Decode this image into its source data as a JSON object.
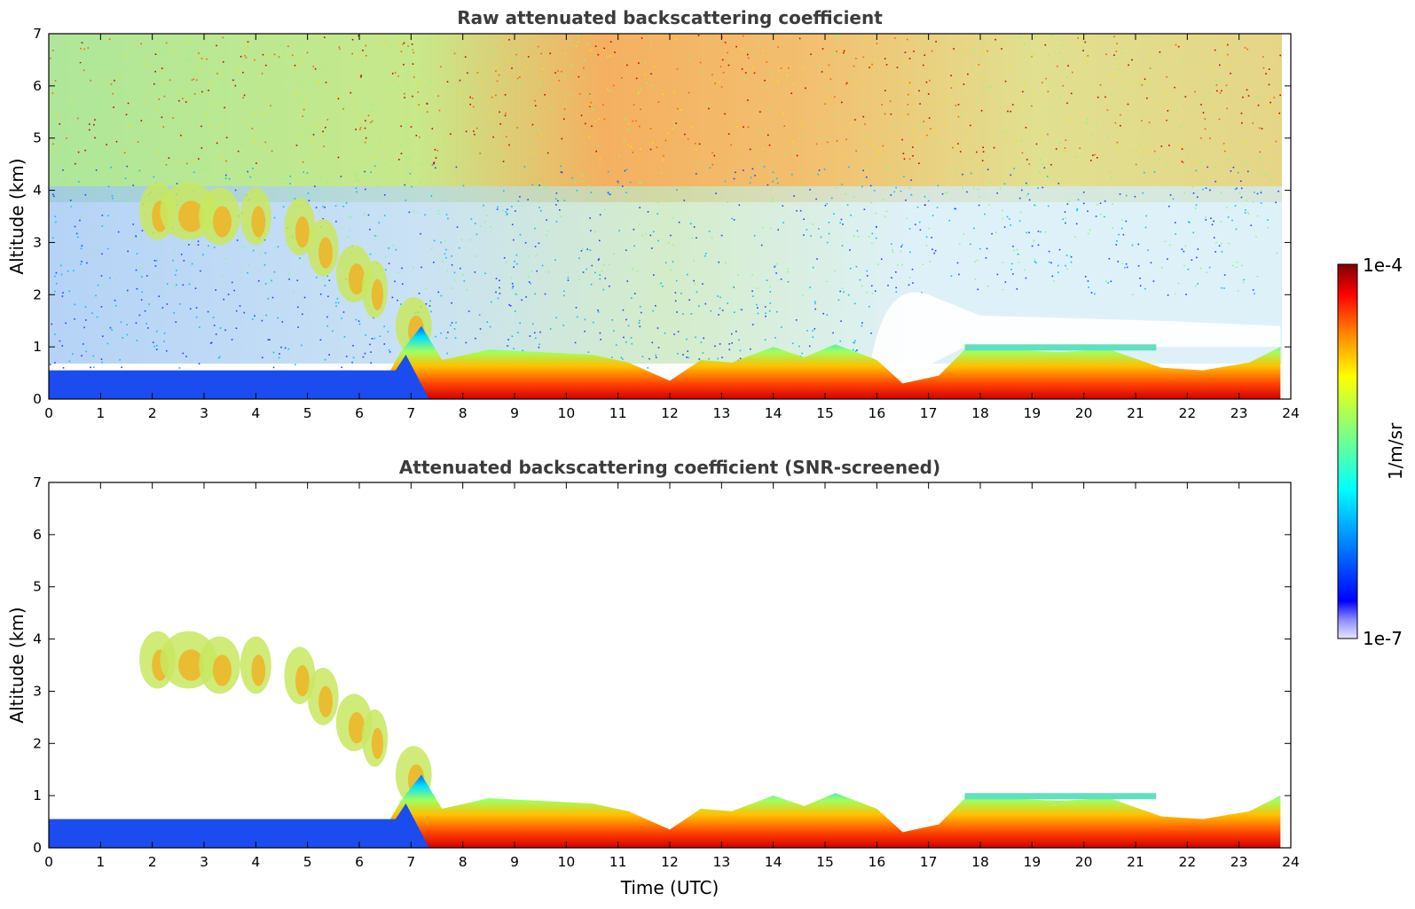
{
  "chart_data": [
    {
      "type": "heatmap",
      "title": "Raw attenuated backscattering coefficient",
      "xlabel": "",
      "ylabel": "Altitude (km)",
      "xlim": [
        0,
        24
      ],
      "ylim": [
        0,
        7
      ],
      "xticks": [
        "0",
        "1",
        "2",
        "3",
        "4",
        "5",
        "6",
        "7",
        "8",
        "9",
        "10",
        "11",
        "12",
        "13",
        "14",
        "15",
        "16",
        "17",
        "18",
        "19",
        "20",
        "21",
        "22",
        "23",
        "24"
      ],
      "yticks": [
        "0",
        "1",
        "2",
        "3",
        "4",
        "5",
        "6",
        "7"
      ],
      "boundary_layer_top_km": {
        "x": [
          0,
          6.6,
          6.8,
          7.2,
          7.6,
          8.5,
          9.5,
          10.5,
          11.2,
          12.0,
          12.6,
          13.2,
          14.0,
          14.6,
          15.2,
          16.0,
          16.5,
          17.2,
          17.7,
          18.5,
          19.5,
          20.5,
          21.5,
          22.3,
          23.2,
          23.8
        ],
        "y": [
          0.55,
          0.55,
          0.9,
          1.4,
          0.75,
          0.95,
          0.9,
          0.85,
          0.7,
          0.35,
          0.75,
          0.7,
          1.0,
          0.8,
          1.05,
          0.75,
          0.3,
          0.45,
          0.95,
          0.95,
          0.9,
          0.95,
          0.6,
          0.55,
          0.7,
          1.0
        ]
      },
      "cloud_layer_top_km": {
        "x_start": 17.7,
        "x_end": 21.4,
        "y": 1.05
      }
    },
    {
      "type": "heatmap",
      "title": "Attenuated backscattering coefficient (SNR-screened)",
      "xlabel": "Time (UTC)",
      "ylabel": "Altitude (km)",
      "xlim": [
        0,
        24
      ],
      "ylim": [
        0,
        7
      ],
      "xticks": [
        "0",
        "1",
        "2",
        "3",
        "4",
        "5",
        "6",
        "7",
        "8",
        "9",
        "10",
        "11",
        "12",
        "13",
        "14",
        "15",
        "16",
        "17",
        "18",
        "19",
        "20",
        "21",
        "22",
        "23",
        "24"
      ],
      "yticks": [
        "0",
        "1",
        "2",
        "3",
        "4",
        "5",
        "6",
        "7"
      ]
    }
  ],
  "colorbar": {
    "max_label": "1e-4",
    "min_label": "1e-7",
    "unit_label": "1/m/sr",
    "colors": [
      "#7f0000",
      "#ff0000",
      "#ff8000",
      "#ffff00",
      "#80ff80",
      "#00ffff",
      "#0080ff",
      "#0000ff",
      "#e6e6ff"
    ]
  }
}
